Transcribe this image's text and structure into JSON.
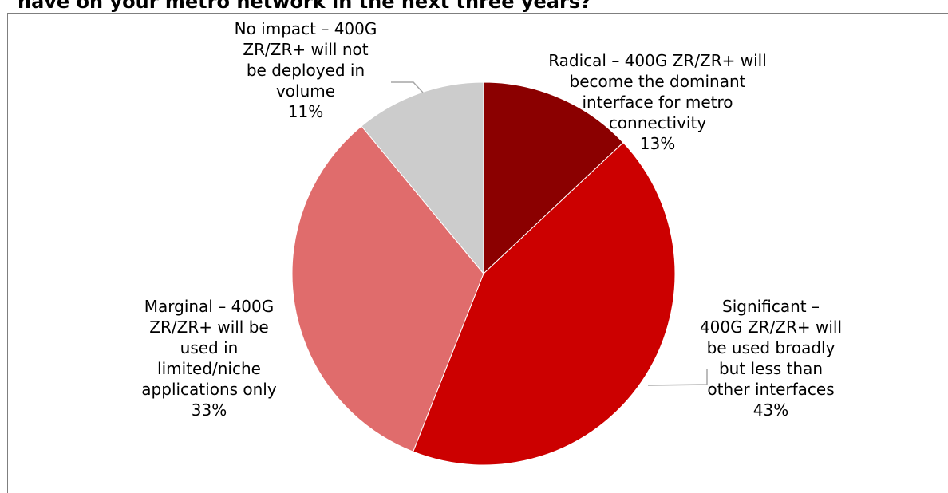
{
  "chart_data": {
    "type": "pie",
    "title": "have on your metro network in the next three years?",
    "slices": [
      {
        "label_lines": [
          "Radical – 400G ZR/ZR+ will",
          "become the dominant",
          "interface for metro",
          "connectivity"
        ],
        "percent_label": "13%",
        "value": 13,
        "color": "#8b0000"
      },
      {
        "label_lines": [
          "Significant –",
          "400G ZR/ZR+ will",
          "be used broadly",
          "but less than",
          "other interfaces"
        ],
        "percent_label": "43%",
        "value": 43,
        "color": "#cc0000"
      },
      {
        "label_lines": [
          "Marginal – 400G",
          "ZR/ZR+ will be",
          "used in",
          "limited/niche",
          "applications only"
        ],
        "percent_label": "33%",
        "value": 33,
        "color": "#e06c6c"
      },
      {
        "label_lines": [
          "No impact – 400G",
          "ZR/ZR+ will not",
          "be deployed in",
          "volume"
        ],
        "percent_label": "11%",
        "value": 11,
        "color": "#cccccc"
      }
    ],
    "start_angle_deg": 0,
    "direction": "clockwise",
    "legend": "none (data labels outside slices)"
  }
}
